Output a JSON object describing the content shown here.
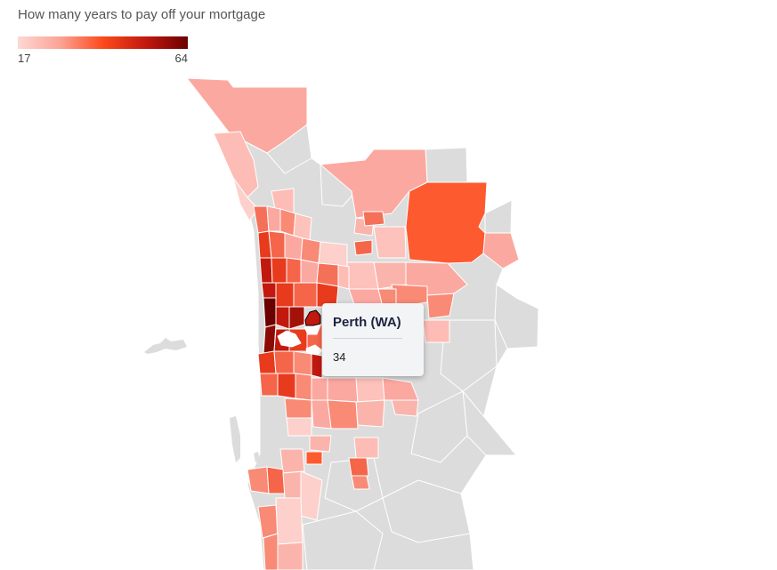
{
  "title": "How many years to pay off your mortgage",
  "legend": {
    "min_label": "17",
    "max_label": "64",
    "min_value": 17,
    "max_value": 64,
    "colors": [
      "#fdd8d4",
      "#fba395",
      "#fd4a1c",
      "#c2190f",
      "#6b0000"
    ]
  },
  "tooltip": {
    "region": "Perth (WA)",
    "value": "34"
  },
  "map": {
    "no_data_color": "#dcdcdc",
    "water_color": "#ffffff"
  }
}
